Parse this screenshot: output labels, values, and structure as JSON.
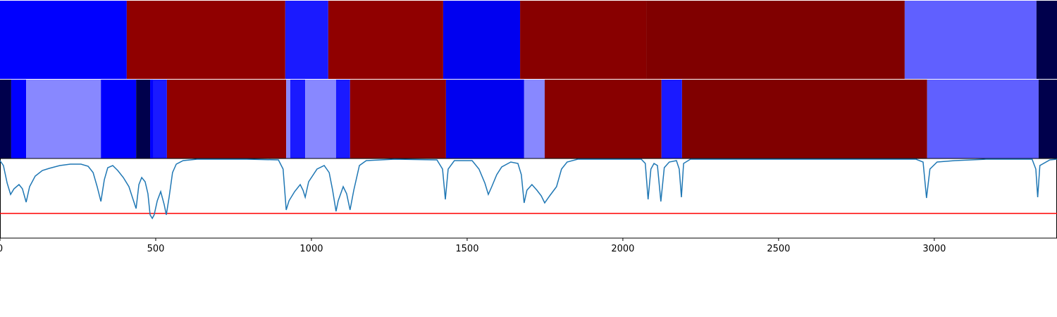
{
  "chart_data": {
    "type": "line",
    "xlim": [
      0,
      3394
    ],
    "xticks": [
      0,
      500,
      1000,
      1500,
      2000,
      2500,
      3000
    ],
    "ylim": [
      0,
      113
    ],
    "bands": [
      {
        "edges": [
          0,
          407,
          916,
          1054,
          1423,
          1670,
          2075,
          2905,
          3328,
          3394
        ],
        "colors": [
          "#0000ff",
          "#900000",
          "#1a1aff",
          "#900000",
          "#0000f0",
          "#880000",
          "#800000",
          "#6060ff",
          "#00004c"
        ]
      },
      {
        "edges": [
          0,
          36,
          84,
          324,
          437,
          482,
          493,
          536,
          919,
          932,
          980,
          1079,
          1124,
          1432,
          1683,
          1749,
          2124,
          2190,
          2977,
          3335,
          3394
        ],
        "colors": [
          "#00004c",
          "#0000ff",
          "#8888ff",
          "#0000ff",
          "#00004c",
          "#0000ff",
          "#1a1aff",
          "#900000",
          "#8888ff",
          "#1a1aff",
          "#8888ff",
          "#1a1aff",
          "#900000",
          "#0000f0",
          "#8888ff",
          "#880000",
          "#1a1aff",
          "#800000",
          "#6060ff",
          "#00004c"
        ]
      }
    ],
    "threshold": {
      "value": 35,
      "color": "#ff0000"
    },
    "x": [
      0,
      11,
      23,
      34,
      45,
      61,
      72,
      84,
      95,
      113,
      136,
      158,
      192,
      226,
      260,
      283,
      299,
      312,
      324,
      335,
      346,
      362,
      378,
      396,
      414,
      425,
      437,
      446,
      455,
      466,
      475,
      482,
      489,
      495,
      505,
      516,
      527,
      534,
      543,
      554,
      566,
      588,
      633,
      792,
      894,
      909,
      919,
      928,
      946,
      964,
      973,
      980,
      991,
      1018,
      1041,
      1057,
      1068,
      1079,
      1086,
      1102,
      1113,
      1124,
      1136,
      1154,
      1176,
      1267,
      1403,
      1421,
      1430,
      1439,
      1459,
      1516,
      1538,
      1557,
      1568,
      1579,
      1595,
      1611,
      1640,
      1663,
      1674,
      1683,
      1692,
      1708,
      1724,
      1738,
      1749,
      1765,
      1787,
      1803,
      1821,
      1855,
      2059,
      2072,
      2081,
      2090,
      2100,
      2111,
      2122,
      2133,
      2149,
      2172,
      2181,
      2188,
      2195,
      2217,
      2941,
      2964,
      2975,
      2986,
      3009,
      3066,
      3167,
      3314,
      3326,
      3332,
      3339,
      3371,
      3394
    ],
    "series": [
      {
        "color": "#1f77b4",
        "values": [
          110,
          103,
          78,
          62,
          70,
          76,
          70,
          51,
          73,
          88,
          96,
          99,
          103,
          105,
          105,
          102,
          93,
          73,
          52,
          83,
          100,
          103,
          96,
          86,
          73,
          58,
          42,
          76,
          86,
          80,
          63,
          33,
          28,
          33,
          53,
          66,
          48,
          33,
          58,
          93,
          105,
          110,
          112,
          112,
          111,
          98,
          40,
          53,
          66,
          76,
          68,
          58,
          80,
          98,
          103,
          93,
          68,
          38,
          53,
          73,
          63,
          40,
          68,
          103,
          110,
          112,
          111,
          98,
          55,
          98,
          110,
          110,
          98,
          78,
          62,
          73,
          90,
          101,
          108,
          106,
          90,
          50,
          68,
          76,
          68,
          60,
          50,
          60,
          73,
          98,
          108,
          112,
          112,
          106,
          55,
          98,
          106,
          103,
          52,
          100,
          108,
          110,
          98,
          58,
          106,
          112,
          112,
          108,
          57,
          98,
          108,
          110,
          112,
          112,
          98,
          58,
          103,
          111,
          112
        ]
      }
    ]
  }
}
